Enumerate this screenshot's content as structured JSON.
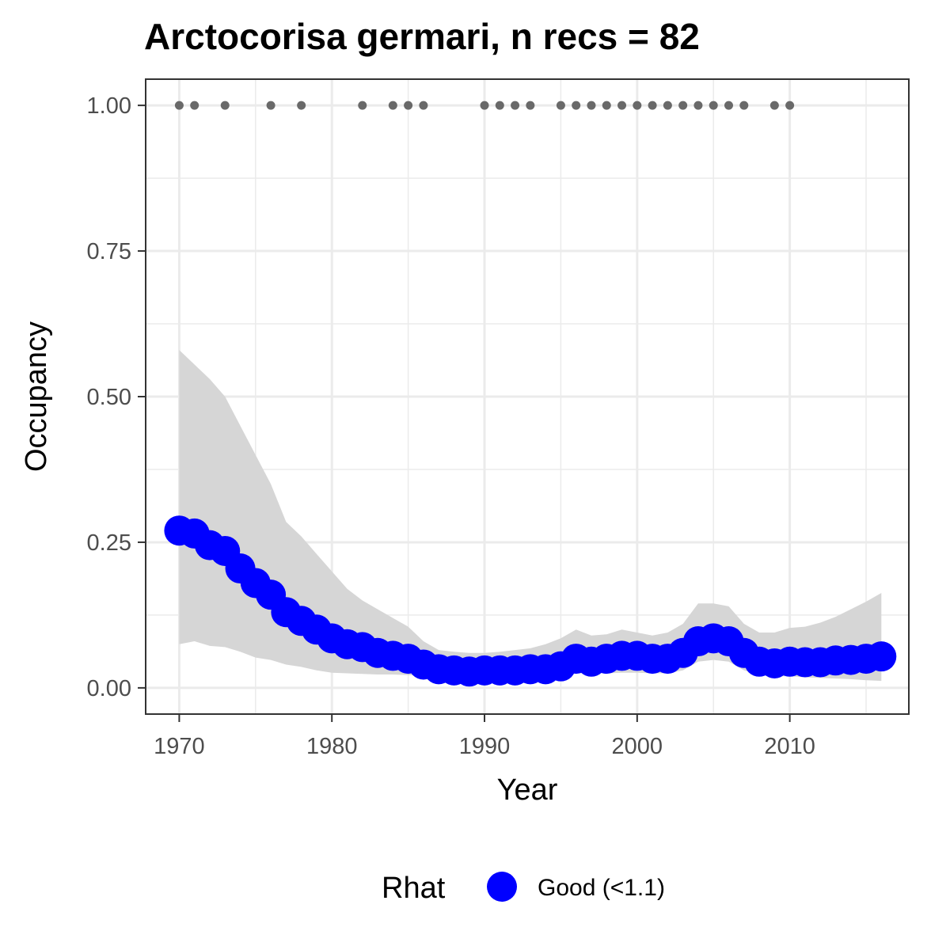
{
  "chart_data": {
    "type": "line",
    "title": "Arctocorisa germari, n recs = 82",
    "xlabel": "Year",
    "ylabel": "Occupancy",
    "xlim": [
      1967.8,
      2017.8
    ],
    "ylim": [
      -0.045,
      1.045
    ],
    "x_ticks": [
      1970,
      1980,
      1990,
      2000,
      2010
    ],
    "x_tick_labels": [
      "1970",
      "1980",
      "1990",
      "2000",
      "2010"
    ],
    "x_minor_ticks": [
      1975,
      1985,
      1995,
      2005,
      2015
    ],
    "y_ticks": [
      0,
      0.25,
      0.5,
      0.75,
      1
    ],
    "y_tick_labels": [
      "0.00",
      "0.25",
      "0.50",
      "0.75",
      "1.00"
    ],
    "y_minor_ticks": [
      0.125,
      0.375,
      0.625,
      0.875
    ],
    "grid": true,
    "legend": {
      "position": "bottom",
      "title": "Rhat",
      "entries": [
        {
          "label": "Good (<1.1)",
          "color": "#0000ff"
        }
      ]
    },
    "colors": {
      "mean": "#0000ff",
      "ribbon": "#d6d6d6",
      "records": "#696969",
      "panel_border": "#333333",
      "grid": "#ebebeb"
    },
    "series": {
      "x": [
        1970,
        1971,
        1972,
        1973,
        1974,
        1975,
        1976,
        1977,
        1978,
        1979,
        1980,
        1981,
        1982,
        1983,
        1984,
        1985,
        1986,
        1987,
        1988,
        1989,
        1990,
        1991,
        1992,
        1993,
        1994,
        1995,
        1996,
        1997,
        1998,
        1999,
        2000,
        2001,
        2002,
        2003,
        2004,
        2005,
        2006,
        2007,
        2008,
        2009,
        2010,
        2011,
        2012,
        2013,
        2014,
        2015,
        2016
      ],
      "mean": [
        0.27,
        0.265,
        0.245,
        0.235,
        0.205,
        0.18,
        0.16,
        0.13,
        0.115,
        0.1,
        0.085,
        0.075,
        0.07,
        0.06,
        0.055,
        0.05,
        0.04,
        0.032,
        0.03,
        0.028,
        0.03,
        0.03,
        0.03,
        0.032,
        0.032,
        0.037,
        0.05,
        0.045,
        0.05,
        0.055,
        0.055,
        0.05,
        0.05,
        0.06,
        0.08,
        0.085,
        0.08,
        0.06,
        0.045,
        0.042,
        0.045,
        0.044,
        0.044,
        0.047,
        0.048,
        0.05,
        0.054
      ],
      "lower": [
        0.075,
        0.08,
        0.072,
        0.07,
        0.062,
        0.052,
        0.048,
        0.04,
        0.036,
        0.03,
        0.026,
        0.025,
        0.024,
        0.023,
        0.023,
        0.022,
        0.021,
        0.02,
        0.02,
        0.02,
        0.02,
        0.02,
        0.02,
        0.02,
        0.02,
        0.021,
        0.025,
        0.025,
        0.025,
        0.026,
        0.026,
        0.025,
        0.025,
        0.03,
        0.045,
        0.048,
        0.045,
        0.03,
        0.022,
        0.02,
        0.02,
        0.018,
        0.017,
        0.016,
        0.015,
        0.013,
        0.012
      ],
      "upper": [
        0.58,
        0.555,
        0.53,
        0.5,
        0.45,
        0.4,
        0.35,
        0.285,
        0.26,
        0.23,
        0.2,
        0.17,
        0.15,
        0.135,
        0.12,
        0.105,
        0.08,
        0.065,
        0.062,
        0.06,
        0.06,
        0.062,
        0.065,
        0.068,
        0.075,
        0.085,
        0.1,
        0.09,
        0.092,
        0.1,
        0.095,
        0.09,
        0.095,
        0.11,
        0.145,
        0.145,
        0.14,
        0.11,
        0.095,
        0.095,
        0.103,
        0.105,
        0.112,
        0.122,
        0.135,
        0.148,
        0.163
      ]
    },
    "records": {
      "x": [
        1970,
        1971,
        1973,
        1976,
        1978,
        1982,
        1984,
        1985,
        1986,
        1990,
        1991,
        1992,
        1993,
        1995,
        1996,
        1997,
        1998,
        1999,
        2000,
        2001,
        2002,
        2003,
        2004,
        2005,
        2006,
        2007,
        2009,
        2010
      ],
      "y": 1
    }
  }
}
